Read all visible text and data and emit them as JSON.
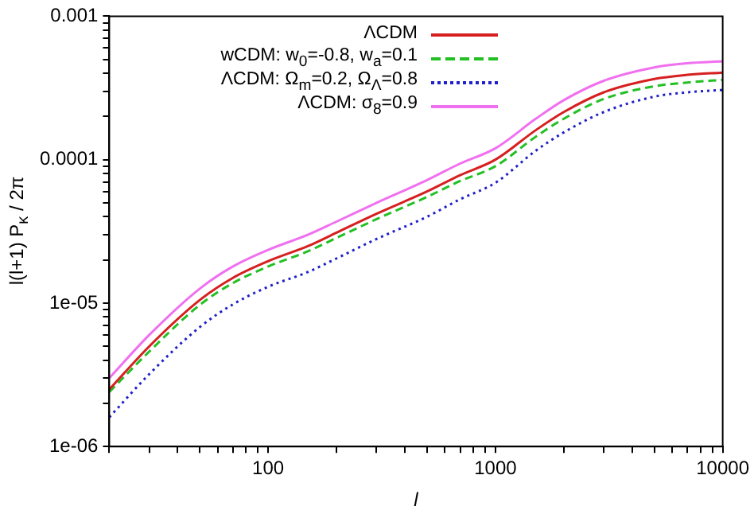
{
  "chart_data": {
    "type": "line",
    "xlabel": "l",
    "ylabel": "l(l+1) P$_{κ}$ / 2π",
    "log": "xy",
    "legend": "top left",
    "marker": "none",
    "x": [
      20,
      30,
      50,
      70,
      100,
      150,
      200,
      300,
      500,
      700,
      1000,
      1500,
      2000,
      3000,
      5000,
      7000,
      10000
    ],
    "series": [
      {
        "name": "ΛCDM",
        "color": "#d62020",
        "line_style": "solid",
        "values": [
          2.5e-06,
          5e-06,
          1.05e-05,
          1.5e-05,
          1.96e-05,
          2.5e-05,
          3.1e-05,
          4.2e-05,
          6e-05,
          7.8e-05,
          0.0001,
          0.00016,
          0.000215,
          0.000295,
          0.000365,
          0.00039,
          0.000405
        ]
      },
      {
        "name": "wCDM: w$_{0}$=-0.8, w$_{a}$=0.1",
        "color": "#22c022",
        "line_style": "dashed",
        "values": [
          2.4e-06,
          4.6e-06,
          9.7e-06,
          1.38e-05,
          1.8e-05,
          2.3e-05,
          2.85e-05,
          3.85e-05,
          5.5e-05,
          7.1e-05,
          9e-05,
          0.000144,
          0.000193,
          0.000265,
          0.000325,
          0.000345,
          0.00036
        ]
      },
      {
        "name": "ΛCDM: Ω$_{m}$=0.2, Ω$_{Λ}$=0.8",
        "color": "#2020c8",
        "line_style": "dotted",
        "values": [
          1.6e-06,
          3.2e-06,
          6.8e-06,
          9.8e-06,
          1.3e-05,
          1.65e-05,
          2.05e-05,
          2.8e-05,
          4e-05,
          5.3e-05,
          6.9e-05,
          0.000115,
          0.000155,
          0.000215,
          0.000275,
          0.000295,
          0.000306
        ]
      },
      {
        "name": "ΛCDM: σ$_{8}$=0.9",
        "color": "#f070f0",
        "line_style": "solid",
        "values": [
          3e-06,
          6e-06,
          1.26e-05,
          1.8e-05,
          2.35e-05,
          3e-05,
          3.7e-05,
          5e-05,
          7.2e-05,
          9.4e-05,
          0.00012,
          0.000192,
          0.00026,
          0.000355,
          0.00044,
          0.00047,
          0.000485
        ]
      }
    ],
    "xlim": [
      20,
      10000
    ],
    "xticks": [
      {
        "value": 20,
        "label": null
      },
      {
        "value": 30,
        "label": null
      },
      {
        "value": 40,
        "label": null
      },
      {
        "value": 50,
        "label": null
      },
      {
        "value": 60,
        "label": null
      },
      {
        "value": 70,
        "label": null
      },
      {
        "value": 80,
        "label": null
      },
      {
        "value": 90,
        "label": null
      },
      100,
      {
        "value": 200,
        "label": null
      },
      {
        "value": 300,
        "label": null
      },
      {
        "value": 400,
        "label": null
      },
      {
        "value": 500,
        "label": null
      },
      {
        "value": 600,
        "label": null
      },
      {
        "value": 700,
        "label": null
      },
      {
        "value": 800,
        "label": null
      },
      {
        "value": 900,
        "label": null
      },
      1000,
      {
        "value": 2000,
        "label": null
      },
      {
        "value": 3000,
        "label": null
      },
      {
        "value": 4000,
        "label": null
      },
      {
        "value": 5000,
        "label": null
      },
      {
        "value": 6000,
        "label": null
      },
      {
        "value": 7000,
        "label": null
      },
      {
        "value": 8000,
        "label": null
      },
      {
        "value": 9000,
        "label": null
      },
      10000
    ],
    "ylim": [
      1e-06,
      0.001
    ],
    "yticks": [
      {
        "value": 1e-06,
        "label": "1e-06"
      },
      {
        "value": 2e-06,
        "label": null
      },
      {
        "value": 3e-06,
        "label": null
      },
      {
        "value": 4e-06,
        "label": null
      },
      {
        "value": 5e-06,
        "label": null
      },
      {
        "value": 6e-06,
        "label": null
      },
      {
        "value": 7e-06,
        "label": null
      },
      {
        "value": 8e-06,
        "label": null
      },
      {
        "value": 9e-06,
        "label": null
      },
      {
        "value": 1e-05,
        "label": "1e-05"
      },
      {
        "value": 2e-05,
        "label": null
      },
      {
        "value": 3e-05,
        "label": null
      },
      {
        "value": 4e-05,
        "label": null
      },
      {
        "value": 5e-05,
        "label": null
      },
      {
        "value": 6e-05,
        "label": null
      },
      {
        "value": 7e-05,
        "label": null
      },
      {
        "value": 8e-05,
        "label": null
      },
      {
        "value": 9e-05,
        "label": null
      },
      0.0001,
      {
        "value": 0.0002,
        "label": null
      },
      {
        "value": 0.0003,
        "label": null
      },
      {
        "value": 0.0004,
        "label": null
      },
      {
        "value": 0.0005,
        "label": null
      },
      {
        "value": 0.0006,
        "label": null
      },
      {
        "value": 0.0007,
        "label": null
      },
      {
        "value": 0.0008,
        "label": null
      },
      {
        "value": 0.0009,
        "label": null
      },
      0.001
    ]
  }
}
